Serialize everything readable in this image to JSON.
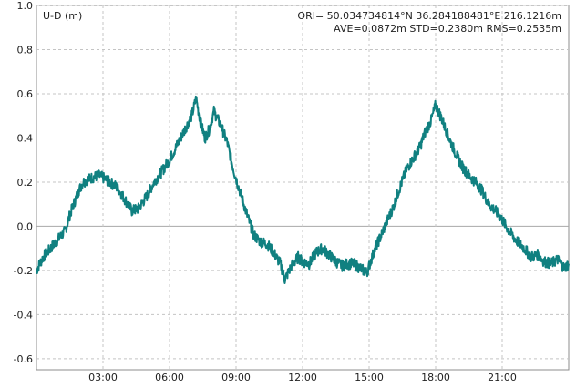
{
  "chart_data": {
    "type": "line",
    "title": "U-D (m)",
    "info_line1": "ORI= 50.034734814°N   36.284188481°E 216.1216m",
    "info_line2": "AVE=0.0872m STD=0.2380m RMS=0.2535m",
    "xlabel": "",
    "ylabel": "U-D (m)",
    "x_unit": "hours",
    "xlim": [
      0,
      24
    ],
    "ylim": [
      -0.65,
      1.0
    ],
    "x_ticks": [
      {
        "value": 3,
        "label": "03:00"
      },
      {
        "value": 6,
        "label": "06:00"
      },
      {
        "value": 9,
        "label": "09:00"
      },
      {
        "value": 12,
        "label": "12:00"
      },
      {
        "value": 15,
        "label": "15:00"
      },
      {
        "value": 18,
        "label": "18:00"
      },
      {
        "value": 21,
        "label": "21:00"
      }
    ],
    "y_ticks": [
      {
        "value": 1.0,
        "label": "1.0"
      },
      {
        "value": 0.8,
        "label": "0.8"
      },
      {
        "value": 0.6,
        "label": "0.6"
      },
      {
        "value": 0.4,
        "label": "0.4"
      },
      {
        "value": 0.2,
        "label": "0.2"
      },
      {
        "value": 0.0,
        "label": "0.0"
      },
      {
        "value": -0.2,
        "label": "-0.2"
      },
      {
        "value": -0.4,
        "label": "-0.4"
      },
      {
        "value": -0.6,
        "label": "-0.6"
      }
    ],
    "grid": true,
    "zero_line": true,
    "line_color": "#108080",
    "series": [
      {
        "x": [
          0,
          0.3,
          0.8,
          1.3,
          1.5,
          1.9,
          2.1,
          2.3,
          2.5,
          2.8,
          3.0,
          3.3,
          3.6,
          4.0,
          4.3,
          4.6,
          5.0,
          5.3,
          5.6,
          6.0,
          6.3,
          6.6,
          6.8,
          7.0,
          7.2,
          7.4,
          7.6,
          7.8,
          8.0,
          8.3,
          8.6,
          8.9,
          9.2,
          9.5,
          9.8,
          10.1,
          10.4,
          10.7,
          11.0,
          11.2,
          11.5,
          11.8,
          12.0,
          12.3,
          12.6,
          12.9,
          13.2,
          13.5,
          13.8,
          14.0,
          14.3,
          14.6,
          14.9,
          15.2,
          15.5,
          15.8,
          16.1,
          16.4,
          16.7,
          17.0,
          17.3,
          17.5,
          17.8,
          18.0,
          18.3,
          18.6,
          18.9,
          19.2,
          19.5,
          19.8,
          20.1,
          20.4,
          20.7,
          21.0,
          21.3,
          21.6,
          22.0,
          22.3,
          22.6,
          22.9,
          23.2,
          23.5,
          23.8,
          24.0
        ],
        "y": [
          -0.2,
          -0.14,
          -0.08,
          -0.02,
          0.05,
          0.16,
          0.2,
          0.21,
          0.22,
          0.23,
          0.22,
          0.2,
          0.18,
          0.12,
          0.07,
          0.08,
          0.14,
          0.2,
          0.24,
          0.3,
          0.36,
          0.42,
          0.46,
          0.5,
          0.58,
          0.47,
          0.4,
          0.44,
          0.52,
          0.46,
          0.38,
          0.25,
          0.15,
          0.05,
          -0.04,
          -0.07,
          -0.08,
          -0.12,
          -0.17,
          -0.24,
          -0.18,
          -0.14,
          -0.16,
          -0.17,
          -0.12,
          -0.1,
          -0.13,
          -0.16,
          -0.18,
          -0.17,
          -0.17,
          -0.19,
          -0.21,
          -0.12,
          -0.05,
          0.02,
          0.09,
          0.18,
          0.26,
          0.31,
          0.36,
          0.42,
          0.48,
          0.55,
          0.48,
          0.4,
          0.33,
          0.27,
          0.23,
          0.2,
          0.16,
          0.1,
          0.07,
          0.03,
          -0.02,
          -0.06,
          -0.1,
          -0.14,
          -0.13,
          -0.16,
          -0.17,
          -0.15,
          -0.19,
          -0.17
        ]
      }
    ]
  }
}
